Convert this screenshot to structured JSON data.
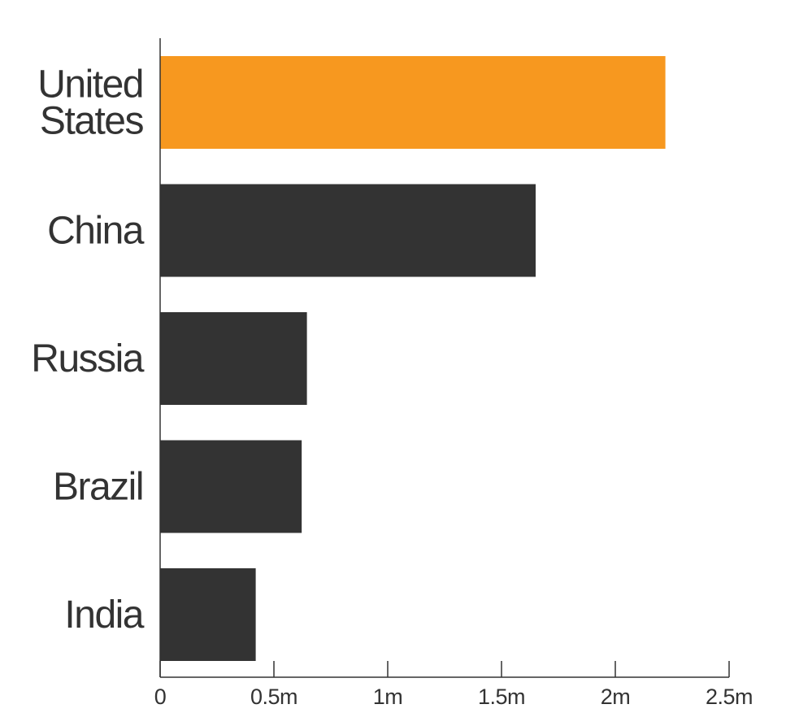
{
  "chart_data": {
    "type": "bar",
    "orientation": "horizontal",
    "categories": [
      "United States",
      "China",
      "Russia",
      "Brazil",
      "India"
    ],
    "category_label_lines": [
      [
        "United",
        "States"
      ],
      [
        "China"
      ],
      [
        "Russia"
      ],
      [
        "Brazil"
      ],
      [
        "India"
      ]
    ],
    "values": [
      2.22,
      1.65,
      0.645,
      0.622,
      0.42
    ],
    "units": "millions",
    "xlim": [
      0,
      2.5
    ],
    "x_ticks": [
      0,
      0.5,
      1,
      1.5,
      2,
      2.5
    ],
    "x_tick_labels": [
      "0",
      "0.5m",
      "1m",
      "1.5m",
      "2m",
      "2.5m"
    ],
    "title": "",
    "xlabel": "",
    "ylabel": "",
    "grid": false,
    "legend": "none",
    "colors": {
      "highlight": "#F7981F",
      "default": "#333333",
      "axis": "#333333",
      "text": "#333333"
    },
    "highlight_index": 0
  }
}
